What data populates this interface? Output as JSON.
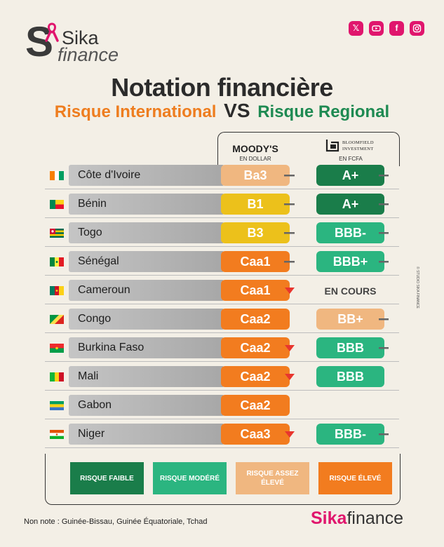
{
  "brand": {
    "logo_letter": "S",
    "logo_line1": "Sika",
    "logo_line2": "finance",
    "footer_part1": "Sika",
    "footer_part2": "finance",
    "accent": "#e0166d"
  },
  "social": [
    {
      "name": "x-icon",
      "glyph": "𝕏"
    },
    {
      "name": "youtube-icon",
      "glyph": ""
    },
    {
      "name": "facebook-icon",
      "glyph": "f"
    },
    {
      "name": "instagram-icon",
      "glyph": ""
    }
  ],
  "title": "Notation financière",
  "subtitle": {
    "left": "Risque International",
    "vs": "VS",
    "right": "Risque Regional"
  },
  "columns": {
    "moodys": "MOODY'S",
    "moodys_sub": "EN DOLLAR",
    "bloomfield_line1": "BLOOMFIELD",
    "bloomfield_line2": "INVESTMENT",
    "bloomfield_sub": "EN FCFA"
  },
  "colors": {
    "faible": "#1a7d4a",
    "modere": "#2bb580",
    "assez_eleve": "#f0b780",
    "eleve": "#f27c1f",
    "b_yellow": "#ecc11b",
    "down": "#e8352e"
  },
  "rows": [
    {
      "country": "Côte d'Ivoire",
      "flag": "ci",
      "moodys": "Ba3",
      "m_color": "#f0b780",
      "m_trend": "stable",
      "bloomfield": "A+",
      "b_color": "#1a7d4a",
      "b_trend": "stable"
    },
    {
      "country": "Bénin",
      "flag": "bj",
      "moodys": "B1",
      "m_color": "#ecc11b",
      "m_trend": "stable",
      "bloomfield": "A+",
      "b_color": "#1a7d4a",
      "b_trend": "stable"
    },
    {
      "country": "Togo",
      "flag": "tg",
      "moodys": "B3",
      "m_color": "#ecc11b",
      "m_trend": "stable",
      "bloomfield": "BBB-",
      "b_color": "#2bb580",
      "b_trend": "stable"
    },
    {
      "country": "Sénégal",
      "flag": "sn",
      "moodys": "Caa1",
      "m_color": "#f27c1f",
      "m_trend": "stable",
      "bloomfield": "BBB+",
      "b_color": "#2bb580",
      "b_trend": "stable"
    },
    {
      "country": "Cameroun",
      "flag": "cm",
      "moodys": "Caa1",
      "m_color": "#f27c1f",
      "m_trend": "down",
      "bloomfield": "EN COURS",
      "b_color": "",
      "b_trend": "none"
    },
    {
      "country": "Congo",
      "flag": "cg",
      "moodys": "Caa2",
      "m_color": "#f27c1f",
      "m_trend": "none",
      "bloomfield": "BB+",
      "b_color": "#f0b780",
      "b_trend": "stable"
    },
    {
      "country": "Burkina Faso",
      "flag": "bf",
      "moodys": "Caa2",
      "m_color": "#f27c1f",
      "m_trend": "down",
      "bloomfield": "BBB",
      "b_color": "#2bb580",
      "b_trend": "stable"
    },
    {
      "country": "Mali",
      "flag": "ml",
      "moodys": "Caa2",
      "m_color": "#f27c1f",
      "m_trend": "down",
      "bloomfield": "BBB",
      "b_color": "#2bb580",
      "b_trend": "none"
    },
    {
      "country": "Gabon",
      "flag": "ga",
      "moodys": "Caa2",
      "m_color": "#f27c1f",
      "m_trend": "none",
      "bloomfield": "",
      "b_color": "",
      "b_trend": "none"
    },
    {
      "country": "Niger",
      "flag": "ne",
      "moodys": "Caa3",
      "m_color": "#f27c1f",
      "m_trend": "down",
      "bloomfield": "BBB-",
      "b_color": "#2bb580",
      "b_trend": "stable"
    }
  ],
  "legend": [
    {
      "label": "RISQUE FAIBLE",
      "color": "#1a7d4a"
    },
    {
      "label": "RISQUE MODÉRÉ",
      "color": "#2bb580"
    },
    {
      "label": "RISQUE ASSEZ ÉLEVÉ",
      "color": "#f0b780"
    },
    {
      "label": "RISQUE ÉLEVÉ",
      "color": "#f27c1f"
    }
  ],
  "note": "Non note : Guinée-Bissau, Guinée Équatoriale, Tchad",
  "side_credit": "© STUDIO SIKA FINANCE"
}
